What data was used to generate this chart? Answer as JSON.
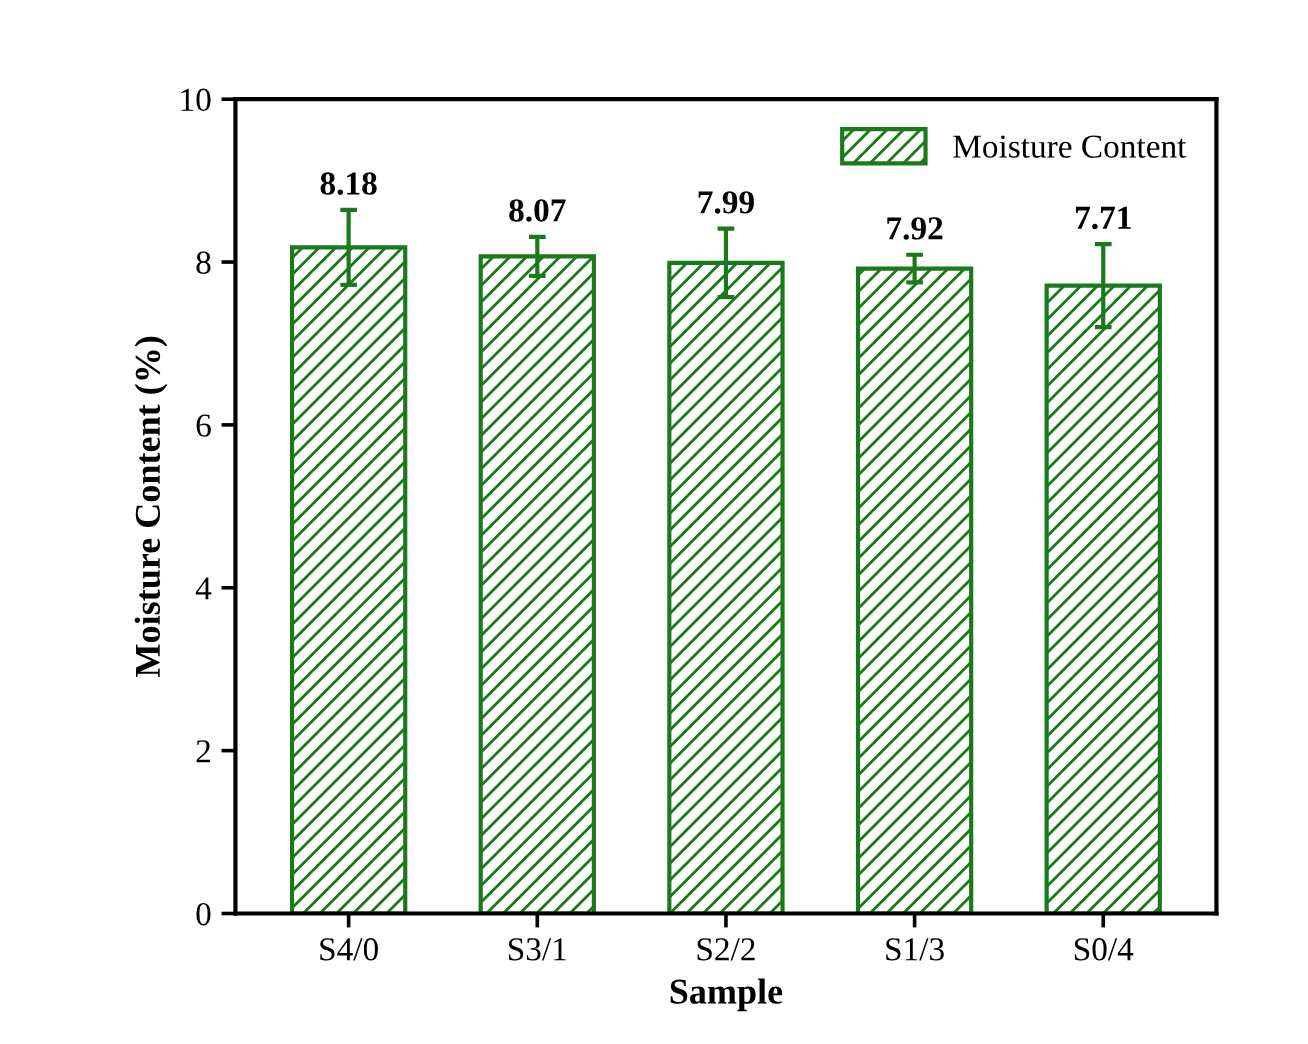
{
  "chart_data": {
    "type": "bar",
    "xlabel": "Sample",
    "ylabel": "Moisture Content (%)",
    "categories": [
      "S4/0",
      "S3/1",
      "S2/2",
      "S1/3",
      "S0/4"
    ],
    "series": [
      {
        "name": "Moisture Content",
        "color": "#1a7a1a",
        "values": [
          8.18,
          8.07,
          7.99,
          7.92,
          7.71
        ],
        "errors": [
          0.46,
          0.24,
          0.42,
          0.17,
          0.51
        ]
      }
    ],
    "ylim": [
      0,
      10
    ],
    "yticks": [
      0,
      2,
      4,
      6,
      8,
      10
    ],
    "data_labels": true,
    "legend": "top right",
    "grid": false
  }
}
